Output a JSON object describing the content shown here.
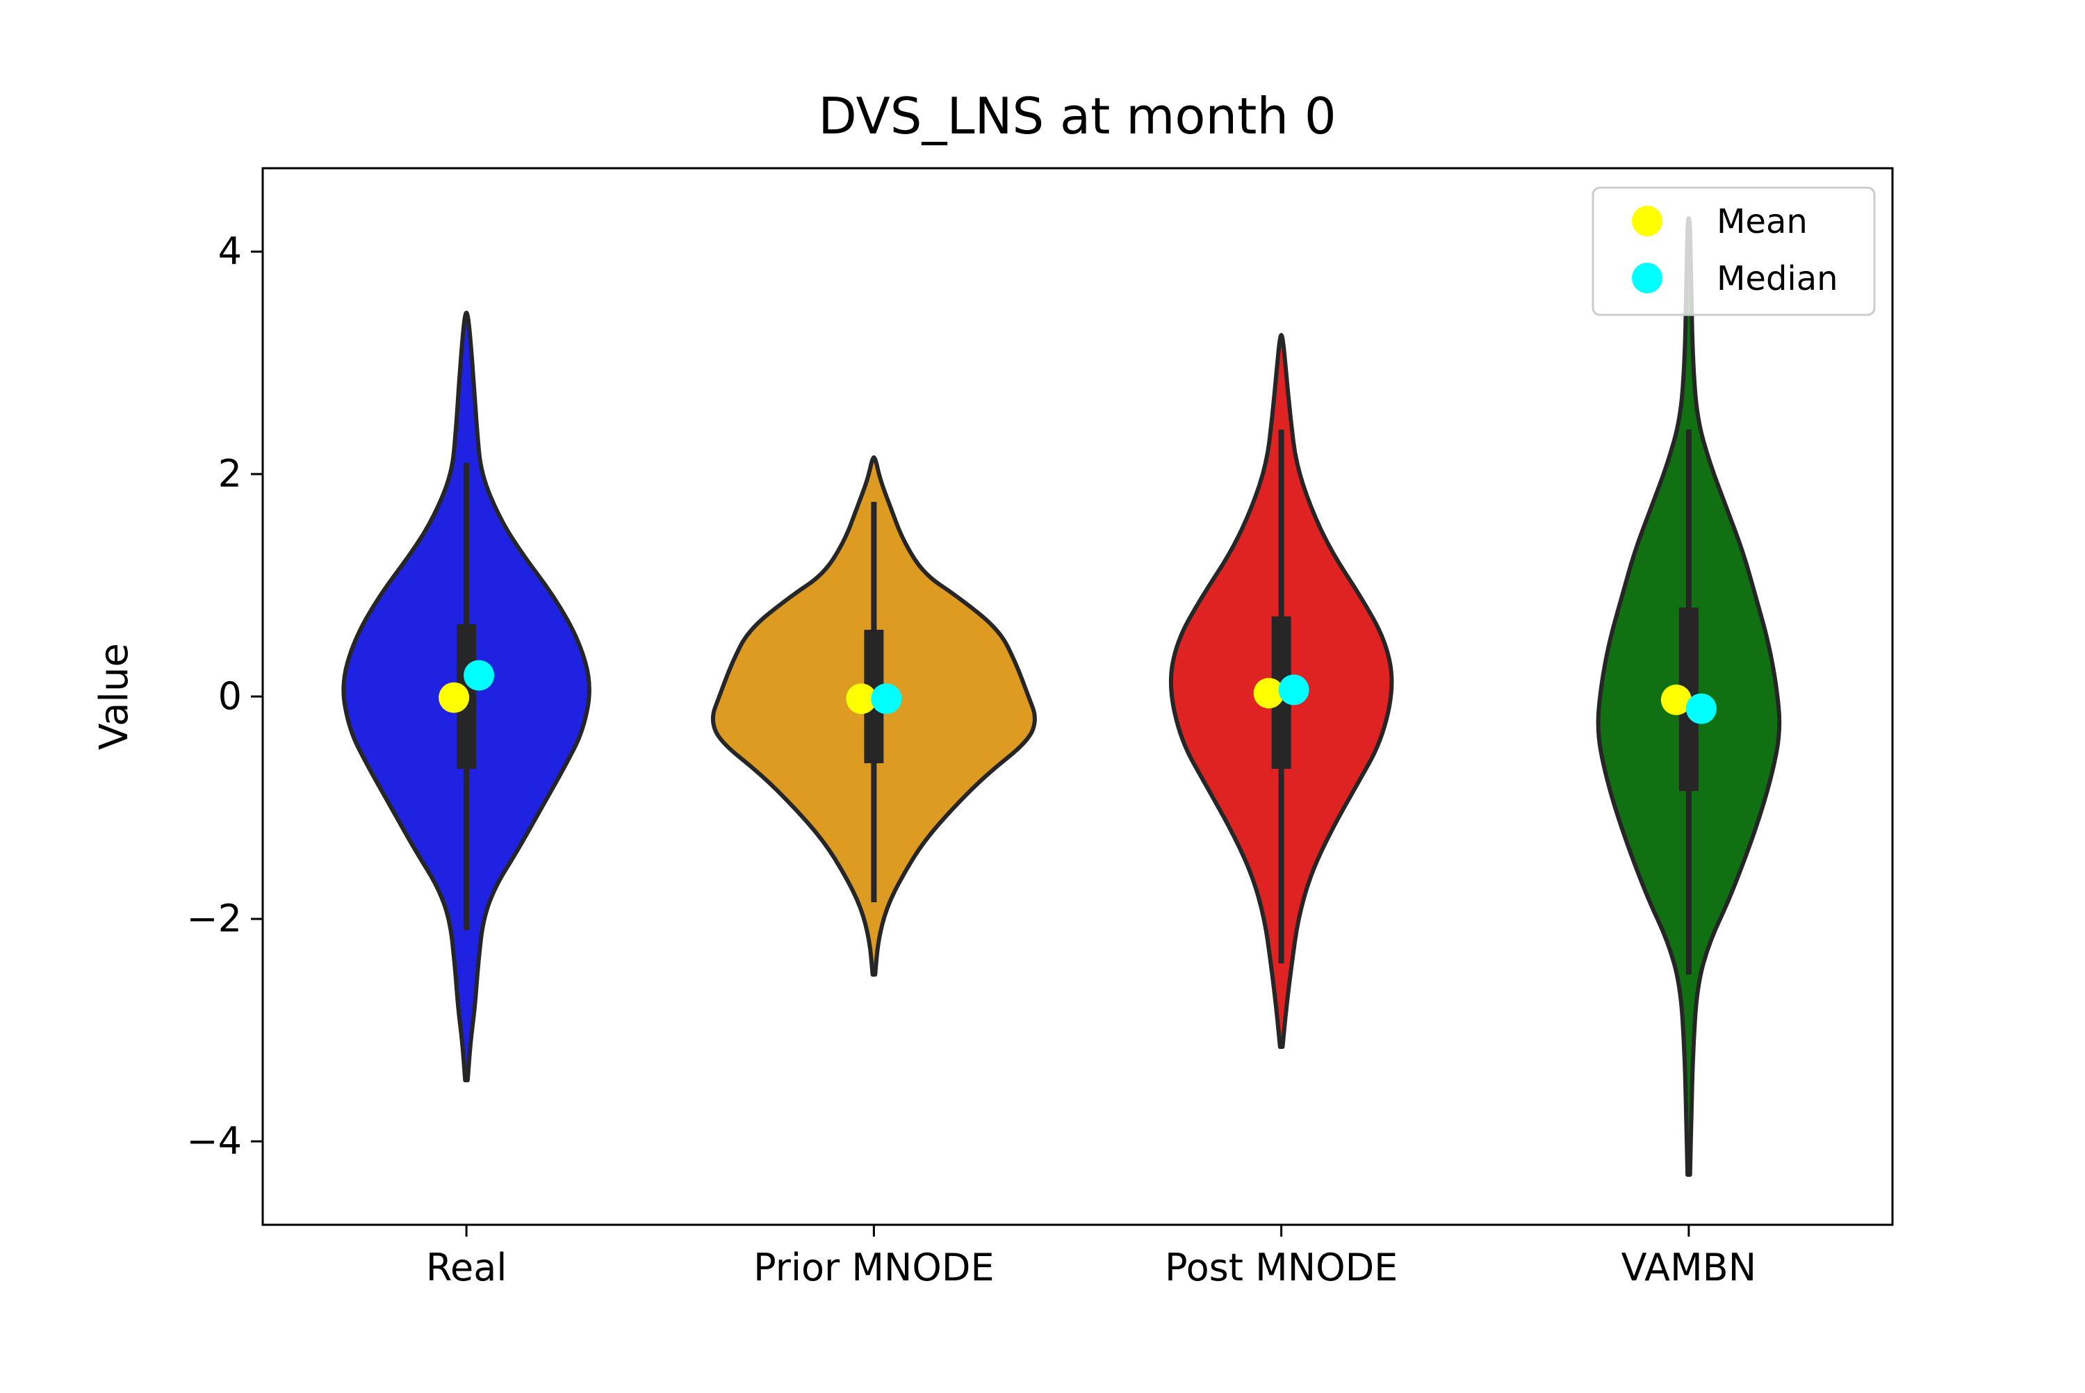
{
  "chart_data": {
    "type": "violin",
    "title": "DVS_LNS at month 0",
    "xlabel": "",
    "ylabel": "Value",
    "ylim": [
      -4.75,
      4.75
    ],
    "yticks": [
      -4,
      -2,
      0,
      2,
      4
    ],
    "ytick_labels": [
      "−4",
      "−2",
      "0",
      "2",
      "4"
    ],
    "grid": false,
    "legend": {
      "placement": "top-right",
      "entries": [
        {
          "label": "Mean",
          "color": "#ffff00"
        },
        {
          "label": "Median",
          "color": "#00ffff"
        }
      ]
    },
    "categories": [
      "Real",
      "Prior MNODE",
      "Post MNODE",
      "VAMBN"
    ],
    "series": [
      {
        "color": "#1f22e0",
        "min": -3.45,
        "max": 3.45,
        "whisker_low": -2.1,
        "whisker_high": 2.1,
        "q1": -0.65,
        "q3": 0.65,
        "mean": -0.01,
        "median": 0.19,
        "profile": [
          [
            -3.45,
            0.003
          ],
          [
            -3.1,
            0.01
          ],
          [
            -2.8,
            0.02
          ],
          [
            -2.4,
            0.028
          ],
          [
            -2.0,
            0.04
          ],
          [
            -1.7,
            0.07
          ],
          [
            -1.4,
            0.12
          ],
          [
            -1.0,
            0.18
          ],
          [
            -0.6,
            0.24
          ],
          [
            -0.3,
            0.28
          ],
          [
            0.1,
            0.3
          ],
          [
            0.5,
            0.27
          ],
          [
            0.9,
            0.21
          ],
          [
            1.3,
            0.13
          ],
          [
            1.6,
            0.08
          ],
          [
            2.0,
            0.035
          ],
          [
            2.4,
            0.025
          ],
          [
            2.8,
            0.018
          ],
          [
            3.2,
            0.01
          ],
          [
            3.45,
            0.003
          ]
        ]
      },
      {
        "color": "#dd9b22",
        "min": -2.5,
        "max": 2.15,
        "whisker_low": -1.85,
        "whisker_high": 1.75,
        "q1": -0.6,
        "q3": 0.6,
        "mean": -0.02,
        "median": -0.02,
        "profile": [
          [
            -2.5,
            0.003
          ],
          [
            -2.2,
            0.01
          ],
          [
            -1.9,
            0.03
          ],
          [
            -1.6,
            0.07
          ],
          [
            -1.3,
            0.12
          ],
          [
            -1.0,
            0.19
          ],
          [
            -0.7,
            0.27
          ],
          [
            -0.4,
            0.37
          ],
          [
            -0.2,
            0.39
          ],
          [
            0.0,
            0.37
          ],
          [
            0.3,
            0.34
          ],
          [
            0.6,
            0.3
          ],
          [
            0.9,
            0.2
          ],
          [
            1.1,
            0.12
          ],
          [
            1.4,
            0.07
          ],
          [
            1.7,
            0.04
          ],
          [
            1.95,
            0.015
          ],
          [
            2.15,
            0.003
          ]
        ]
      },
      {
        "color": "#df2222",
        "min": -3.15,
        "max": 3.25,
        "whisker_low": -2.4,
        "whisker_high": 2.4,
        "q1": -0.65,
        "q3": 0.72,
        "mean": 0.03,
        "median": 0.06,
        "profile": [
          [
            -3.15,
            0.003
          ],
          [
            -2.8,
            0.012
          ],
          [
            -2.4,
            0.025
          ],
          [
            -2.0,
            0.04
          ],
          [
            -1.6,
            0.07
          ],
          [
            -1.2,
            0.12
          ],
          [
            -0.8,
            0.18
          ],
          [
            -0.4,
            0.24
          ],
          [
            0.1,
            0.27
          ],
          [
            0.5,
            0.25
          ],
          [
            0.9,
            0.19
          ],
          [
            1.3,
            0.12
          ],
          [
            1.7,
            0.07
          ],
          [
            2.1,
            0.035
          ],
          [
            2.5,
            0.022
          ],
          [
            2.9,
            0.012
          ],
          [
            3.25,
            0.003
          ]
        ]
      },
      {
        "color": "#117011",
        "min": -4.3,
        "max": 4.3,
        "whisker_low": -2.5,
        "whisker_high": 2.4,
        "q1": -0.85,
        "q3": 0.8,
        "mean": -0.03,
        "median": -0.11,
        "profile": [
          [
            -4.3,
            0.003
          ],
          [
            -3.8,
            0.006
          ],
          [
            -3.2,
            0.01
          ],
          [
            -2.6,
            0.02
          ],
          [
            -2.2,
            0.05
          ],
          [
            -1.8,
            0.1
          ],
          [
            -1.2,
            0.16
          ],
          [
            -0.7,
            0.2
          ],
          [
            -0.3,
            0.22
          ],
          [
            0.1,
            0.21
          ],
          [
            0.5,
            0.19
          ],
          [
            0.9,
            0.16
          ],
          [
            1.3,
            0.13
          ],
          [
            1.7,
            0.09
          ],
          [
            2.1,
            0.05
          ],
          [
            2.5,
            0.02
          ],
          [
            3.0,
            0.01
          ],
          [
            3.6,
            0.006
          ],
          [
            4.3,
            0.003
          ]
        ]
      }
    ]
  }
}
